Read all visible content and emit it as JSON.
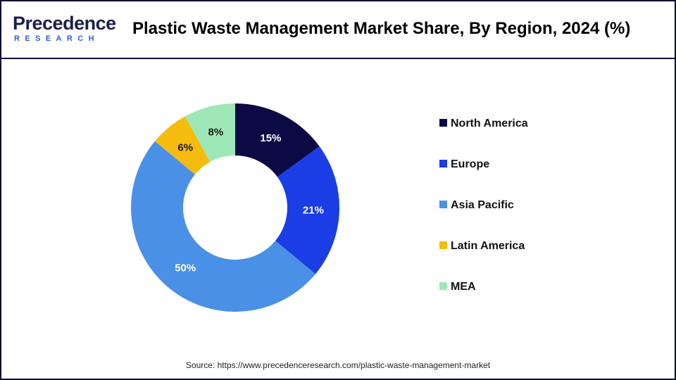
{
  "brand": {
    "name_rest": "recedence",
    "name_initial": "P",
    "tagline": "RESEARCH"
  },
  "title": "Plastic Waste Management Market Share, By Region, 2024 (%)",
  "source": "Source: https://www.precedenceresearch.com/plastic-waste-management-market",
  "chart_data": {
    "type": "pie",
    "title": "Plastic Waste Management Market Share, By Region, 2024 (%)",
    "hole": true,
    "legend_position": "right",
    "categories": [
      "North America",
      "Europe",
      "Asia Pacific",
      "Latin America",
      "MEA"
    ],
    "values": [
      15,
      21,
      50,
      6,
      8
    ],
    "labels": [
      "15%",
      "21%",
      "50%",
      "6%",
      "8%"
    ],
    "colors": [
      "#0b0a45",
      "#1a3de6",
      "#4a90e6",
      "#f5bb0f",
      "#9ee8b8"
    ]
  }
}
